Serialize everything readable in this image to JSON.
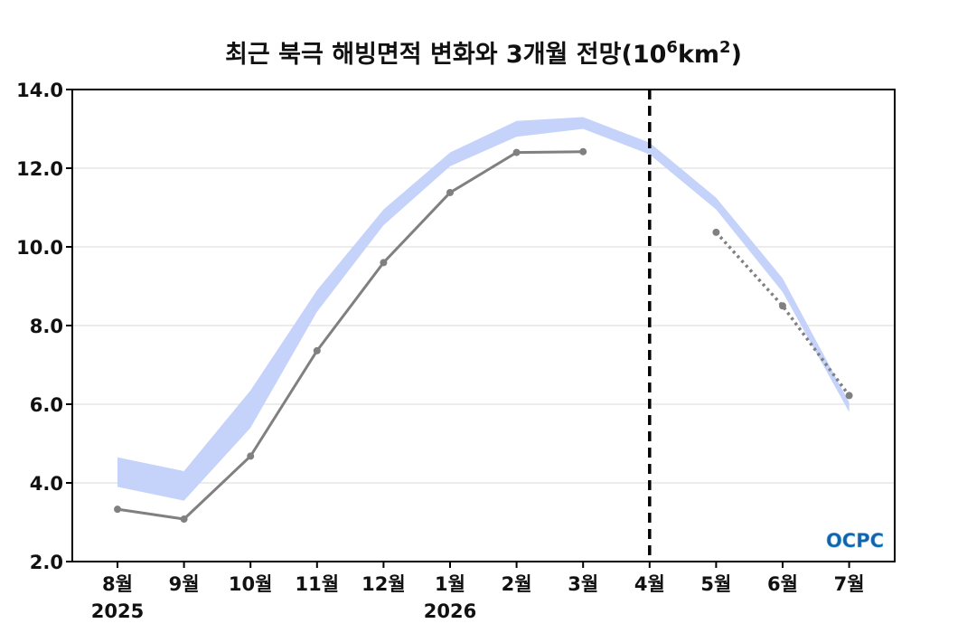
{
  "chart_data": {
    "type": "line",
    "title": "최근 북극 해빙면적 변화와 3개월 전망(10",
    "title_exp": "6",
    "title_unit": "km",
    "title_unit_exp": "2",
    "title_close": ")",
    "categories": [
      "8월",
      "9월",
      "10월",
      "11월",
      "12월",
      "1월",
      "2월",
      "3월",
      "4월",
      "5월",
      "6월",
      "7월"
    ],
    "year_labels": [
      {
        "category": "8월",
        "label": "2025"
      },
      {
        "category": "1월",
        "label": "2026"
      }
    ],
    "ylim": [
      2.0,
      14.0
    ],
    "yticks": [
      "2.0",
      "4.0",
      "6.0",
      "8.0",
      "10.0",
      "12.0",
      "14.0"
    ],
    "grid": true,
    "forecast_start": "4월",
    "series": [
      {
        "style": "band",
        "color": "#c5d3fb",
        "x": [
          "8월",
          "9월",
          "10월",
          "11월",
          "12월",
          "1월",
          "2월",
          "3월",
          "4월",
          "5월",
          "6월",
          "7월"
        ],
        "low": [
          3.9,
          3.55,
          5.4,
          8.35,
          10.55,
          12.05,
          12.8,
          13.0,
          12.35,
          10.95,
          8.85,
          5.8
        ],
        "high": [
          4.65,
          4.3,
          6.35,
          8.9,
          10.95,
          12.4,
          13.2,
          13.3,
          12.65,
          11.25,
          9.2,
          6.05
        ]
      },
      {
        "style": "solid",
        "color": "#808080",
        "x": [
          "8월",
          "9월",
          "10월",
          "11월",
          "12월",
          "1월",
          "2월",
          "3월"
        ],
        "values": [
          3.33,
          3.08,
          4.68,
          7.36,
          9.6,
          11.38,
          12.4,
          12.42
        ]
      },
      {
        "style": "dotted",
        "color": "#808080",
        "x": [
          "5월",
          "6월",
          "7월"
        ],
        "values": [
          10.37,
          8.5,
          6.22
        ]
      }
    ]
  },
  "logo": {
    "text": "OCPC",
    "colors": [
      "#1a5faa",
      "#59c2e6"
    ]
  }
}
